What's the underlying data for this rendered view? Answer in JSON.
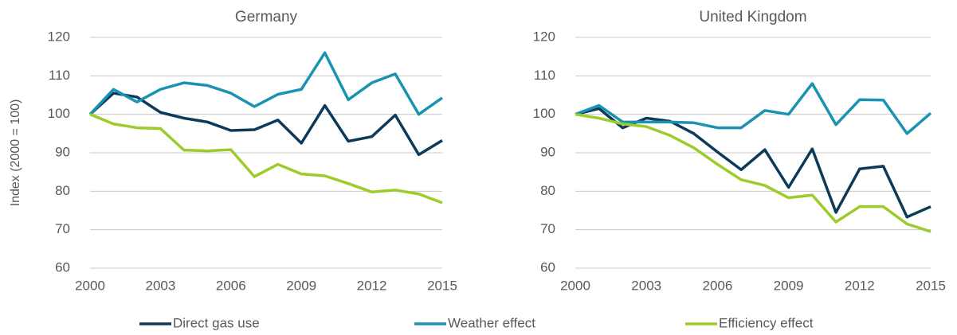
{
  "chart_data": [
    {
      "type": "line",
      "title": "Germany",
      "ylabel": "Index (2000 = 100)",
      "x": [
        2000,
        2001,
        2002,
        2003,
        2004,
        2005,
        2006,
        2007,
        2008,
        2009,
        2010,
        2011,
        2012,
        2013,
        2014,
        2015
      ],
      "xlim": [
        2000,
        2015
      ],
      "xticks": [
        2000,
        2003,
        2006,
        2009,
        2012,
        2015
      ],
      "ylim": [
        60,
        120
      ],
      "yticks": [
        60,
        70,
        80,
        90,
        100,
        110,
        120
      ],
      "grid": true,
      "legend": "bottom",
      "series": [
        {
          "name": "Direct gas use",
          "color": "#0e3a5a",
          "values": [
            100,
            105.5,
            104.5,
            100.5,
            99,
            98,
            95.8,
            96,
            98.5,
            92.5,
            102.3,
            93,
            94.2,
            99.8,
            89.5,
            93.2
          ]
        },
        {
          "name": "Weather effect",
          "color": "#1a93b3",
          "values": [
            100,
            106.5,
            103.2,
            106.5,
            108.2,
            107.5,
            105.5,
            102,
            105.2,
            106.5,
            116,
            103.8,
            108.2,
            110.5,
            100,
            104.3
          ]
        },
        {
          "name": "Efficiency effect",
          "color": "#9ccc2a",
          "values": [
            100,
            97.5,
            96.5,
            96.3,
            90.7,
            90.5,
            90.8,
            83.8,
            87,
            84.5,
            84,
            82,
            79.8,
            80.3,
            79.3,
            77
          ]
        }
      ]
    },
    {
      "type": "line",
      "title": "United Kingdom",
      "x": [
        2000,
        2001,
        2002,
        2003,
        2004,
        2005,
        2006,
        2007,
        2008,
        2009,
        2010,
        2011,
        2012,
        2013,
        2014,
        2015
      ],
      "xlim": [
        2000,
        2015
      ],
      "xticks": [
        2000,
        2003,
        2006,
        2009,
        2012,
        2015
      ],
      "ylim": [
        60,
        120
      ],
      "yticks": [
        60,
        70,
        80,
        90,
        100,
        110,
        120
      ],
      "grid": true,
      "series": [
        {
          "color": "#0e3a5a",
          "values": [
            100,
            101.5,
            96.5,
            99,
            98.2,
            95,
            90.2,
            85.6,
            90.8,
            81,
            91,
            74.5,
            85.8,
            86.5,
            73.3,
            76
          ]
        },
        {
          "color": "#1a93b3",
          "values": [
            100,
            102.3,
            98,
            98,
            98,
            97.8,
            96.5,
            96.5,
            101,
            100,
            108,
            97.3,
            103.8,
            103.7,
            95,
            100.3
          ]
        },
        {
          "color": "#9ccc2a",
          "values": [
            100,
            99,
            97.5,
            96.8,
            94.5,
            91.3,
            87,
            83,
            81.5,
            78.3,
            79,
            72,
            76,
            76,
            71.5,
            69.5
          ]
        }
      ]
    }
  ]
}
